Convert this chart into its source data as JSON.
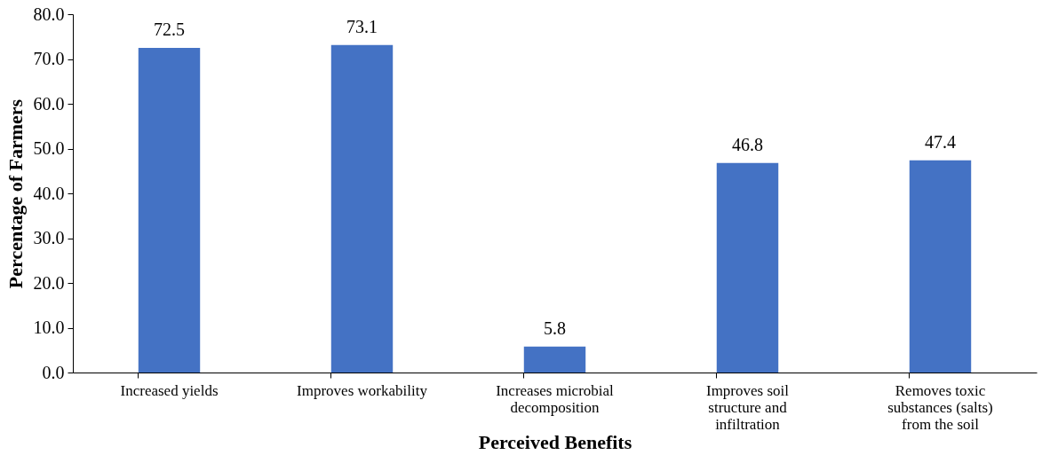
{
  "chart_data": {
    "type": "bar",
    "xlabel": "Perceived Benefits",
    "ylabel": "Percentage of Farmers",
    "categories": [
      "Increased yields",
      "Improves workability",
      "Increases microbial decomposition",
      "Improves soil structure and infiltration",
      "Removes toxic substances (salts) from the soil"
    ],
    "values": [
      72.5,
      73.1,
      5.8,
      46.8,
      47.4
    ],
    "color": "#4472c4",
    "data_labels": true,
    "grid": false,
    "ylim": [
      0,
      80
    ],
    "yticks": [
      {
        "value": 0,
        "label": "0.0"
      },
      {
        "value": 10,
        "label": "10.0"
      },
      {
        "value": 20,
        "label": "20.0"
      },
      {
        "value": 30,
        "label": "30.0"
      },
      {
        "value": 40,
        "label": "40.0"
      },
      {
        "value": 50,
        "label": "50.0"
      },
      {
        "value": 60,
        "label": "60.0"
      },
      {
        "value": 70,
        "label": "70.0"
      },
      {
        "value": 80,
        "label": "80.0"
      }
    ]
  }
}
